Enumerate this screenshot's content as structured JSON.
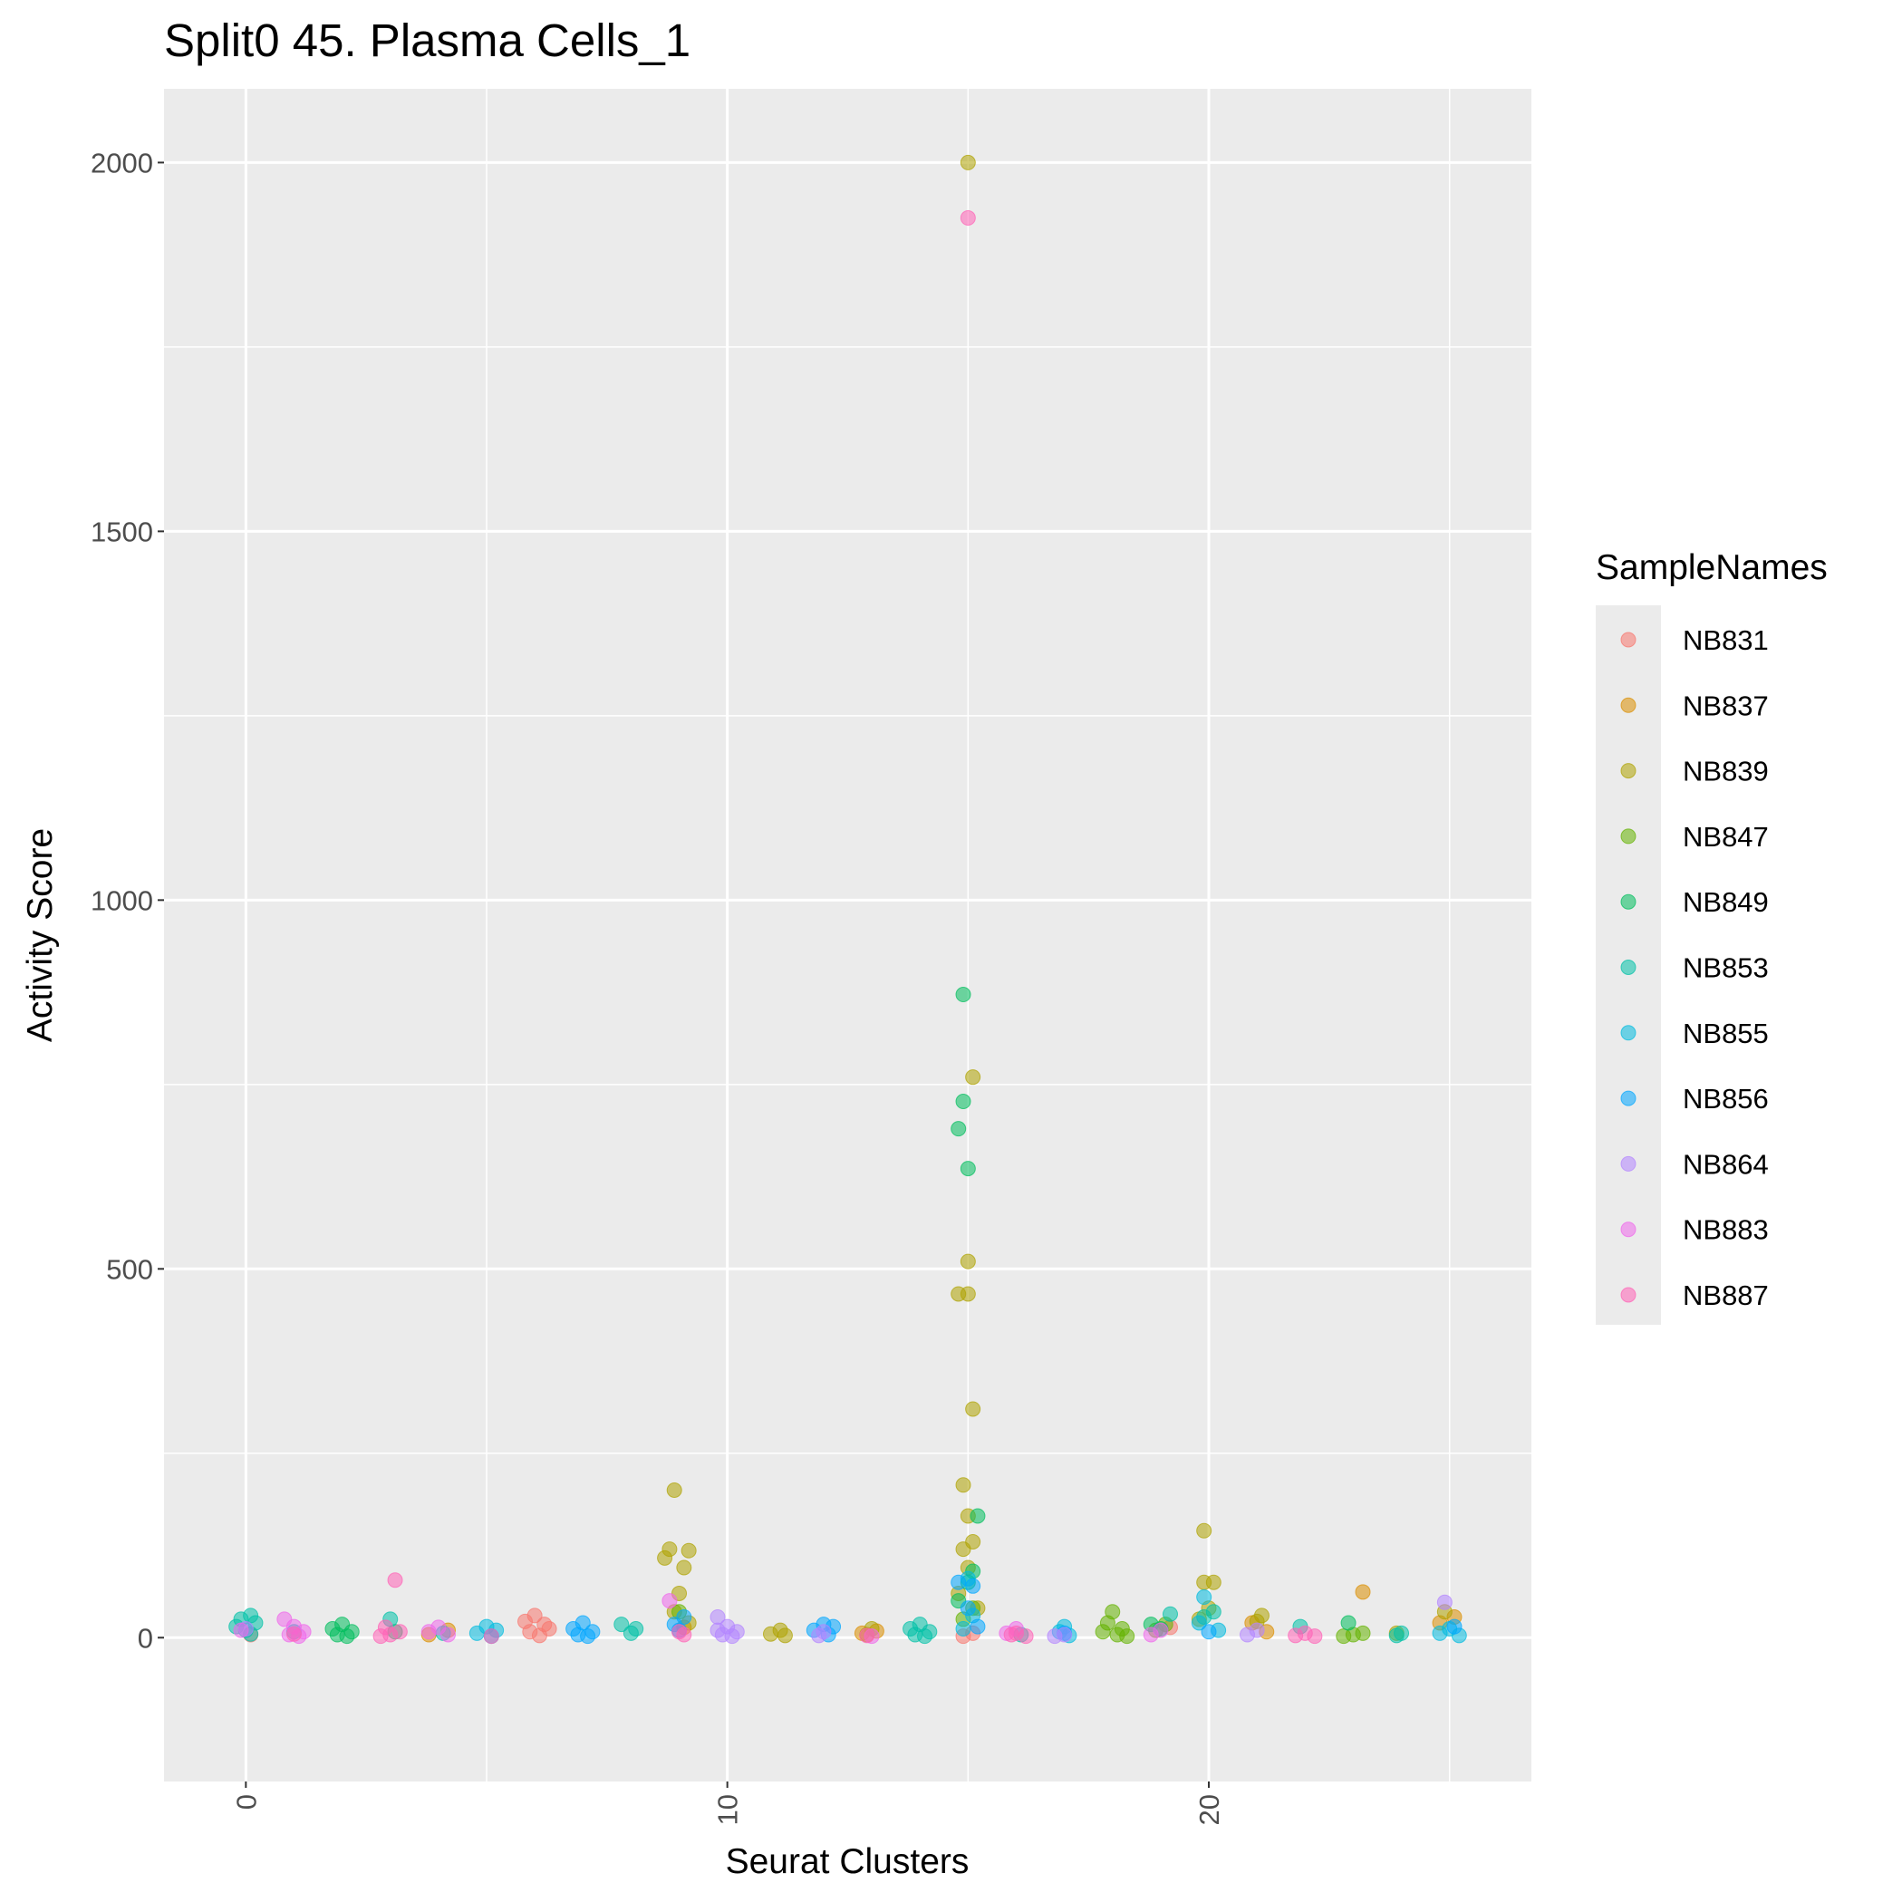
{
  "chart_data": {
    "type": "scatter",
    "title": "Split0 45. Plasma Cells_1",
    "xlabel": "Seurat Clusters",
    "ylabel": "Activity Score",
    "xlim": [
      -1.7,
      26.7
    ],
    "ylim": [
      -195,
      2100
    ],
    "x_ticks": [
      0,
      10,
      20
    ],
    "y_ticks": [
      0,
      500,
      1000,
      1500,
      2000
    ],
    "grid": true,
    "legend": {
      "title": "SampleNames",
      "position": "right"
    },
    "series": [
      {
        "name": "NB831",
        "color": "#F8766D",
        "points": [
          [
            6,
            30
          ],
          [
            6.2,
            18
          ],
          [
            5.9,
            8
          ],
          [
            6.1,
            3
          ],
          [
            6.3,
            12
          ],
          [
            5.8,
            22
          ],
          [
            15.1,
            6
          ],
          [
            19.2,
            14
          ],
          [
            0.1,
            4
          ],
          [
            14.9,
            2
          ]
        ]
      },
      {
        "name": "NB837",
        "color": "#DB8E00",
        "points": [
          [
            23.2,
            62
          ],
          [
            4.2,
            10
          ],
          [
            12.8,
            6
          ],
          [
            13.1,
            9
          ],
          [
            20.9,
            20
          ],
          [
            24.8,
            20
          ],
          [
            25.1,
            28
          ],
          [
            3.8,
            4
          ],
          [
            21.2,
            8
          ],
          [
            9.1,
            14
          ]
        ]
      },
      {
        "name": "NB839",
        "color": "#AEA200",
        "points": [
          [
            15.0,
            2000
          ],
          [
            15.1,
            760
          ],
          [
            15.0,
            510
          ],
          [
            14.8,
            466
          ],
          [
            15.0,
            466
          ],
          [
            15.1,
            310
          ],
          [
            14.9,
            207
          ],
          [
            15.0,
            165
          ],
          [
            15.1,
            130
          ],
          [
            14.9,
            120
          ],
          [
            15.0,
            95
          ],
          [
            14.8,
            60
          ],
          [
            15.2,
            40
          ],
          [
            8.9,
            200
          ],
          [
            8.8,
            120
          ],
          [
            9.2,
            118
          ],
          [
            8.7,
            108
          ],
          [
            9.1,
            95
          ],
          [
            9.0,
            60
          ],
          [
            8.9,
            35
          ],
          [
            9.2,
            20
          ],
          [
            19.9,
            145
          ],
          [
            19.9,
            75
          ],
          [
            20.1,
            75
          ],
          [
            20.0,
            40
          ],
          [
            19.8,
            25
          ],
          [
            21.1,
            30
          ],
          [
            21.0,
            22
          ],
          [
            24.9,
            35
          ],
          [
            11.1,
            10
          ],
          [
            10.9,
            5
          ],
          [
            11.2,
            3
          ],
          [
            13.0,
            12
          ],
          [
            12.9,
            4
          ],
          [
            23.9,
            6
          ]
        ]
      },
      {
        "name": "NB847",
        "color": "#64B200",
        "points": [
          [
            18.0,
            35
          ],
          [
            17.9,
            20
          ],
          [
            18.2,
            12
          ],
          [
            17.8,
            8
          ],
          [
            18.1,
            4
          ],
          [
            18.3,
            2
          ],
          [
            19.1,
            18
          ],
          [
            18.9,
            10
          ],
          [
            23.0,
            4
          ],
          [
            22.8,
            2
          ],
          [
            23.2,
            6
          ],
          [
            14.9,
            25
          ],
          [
            15.1,
            40
          ],
          [
            9.0,
            35
          ]
        ]
      },
      {
        "name": "NB849",
        "color": "#00BD5C",
        "points": [
          [
            14.9,
            872
          ],
          [
            14.9,
            727
          ],
          [
            14.8,
            690
          ],
          [
            15.0,
            636
          ],
          [
            15.2,
            165
          ],
          [
            15.1,
            90
          ],
          [
            15.0,
            75
          ],
          [
            14.8,
            50
          ],
          [
            2.0,
            18
          ],
          [
            1.8,
            12
          ],
          [
            2.2,
            8
          ],
          [
            1.9,
            4
          ],
          [
            2.1,
            2
          ],
          [
            18.8,
            18
          ],
          [
            19.0,
            12
          ],
          [
            22.9,
            20
          ],
          [
            3.1,
            8
          ]
        ]
      },
      {
        "name": "NB853",
        "color": "#00C1A7",
        "points": [
          [
            0.1,
            30
          ],
          [
            -0.1,
            25
          ],
          [
            0.2,
            20
          ],
          [
            -0.2,
            15
          ],
          [
            0.0,
            10
          ],
          [
            0.1,
            5
          ],
          [
            14.0,
            18
          ],
          [
            13.8,
            12
          ],
          [
            14.2,
            8
          ],
          [
            13.9,
            4
          ],
          [
            14.1,
            2
          ],
          [
            3.0,
            25
          ],
          [
            7.8,
            18
          ],
          [
            8.1,
            12
          ],
          [
            8.0,
            6
          ],
          [
            19.2,
            32
          ],
          [
            20.1,
            35
          ],
          [
            19.9,
            28
          ],
          [
            21.9,
            15
          ],
          [
            24.0,
            6
          ],
          [
            23.9,
            3
          ],
          [
            1.0,
            8
          ],
          [
            4.1,
            6
          ],
          [
            16.1,
            4
          ]
        ]
      },
      {
        "name": "NB855",
        "color": "#00BADE",
        "points": [
          [
            19.9,
            55
          ],
          [
            19.8,
            20
          ],
          [
            20.2,
            10
          ],
          [
            5.0,
            15
          ],
          [
            5.2,
            10
          ],
          [
            4.8,
            6
          ],
          [
            5.1,
            2
          ],
          [
            15.0,
            80
          ],
          [
            15.1,
            30
          ],
          [
            14.9,
            12
          ],
          [
            17.0,
            15
          ],
          [
            16.9,
            8
          ],
          [
            17.1,
            3
          ],
          [
            25.0,
            12
          ],
          [
            24.8,
            6
          ],
          [
            25.2,
            3
          ]
        ]
      },
      {
        "name": "NB856",
        "color": "#00A6FF",
        "points": [
          [
            7.0,
            20
          ],
          [
            6.8,
            12
          ],
          [
            7.2,
            8
          ],
          [
            6.9,
            4
          ],
          [
            7.1,
            2
          ],
          [
            12.0,
            18
          ],
          [
            12.2,
            15
          ],
          [
            11.8,
            10
          ],
          [
            12.1,
            4
          ],
          [
            9.1,
            28
          ],
          [
            8.9,
            18
          ],
          [
            9.0,
            10
          ],
          [
            14.8,
            75
          ],
          [
            15.1,
            70
          ],
          [
            15.0,
            40
          ],
          [
            15.2,
            15
          ],
          [
            17.0,
            6
          ],
          [
            20.0,
            8
          ],
          [
            25.1,
            15
          ]
        ]
      },
      {
        "name": "NB864",
        "color": "#B385FF",
        "points": [
          [
            10.0,
            15
          ],
          [
            9.8,
            10
          ],
          [
            10.2,
            8
          ],
          [
            9.9,
            4
          ],
          [
            10.1,
            2
          ],
          [
            9.8,
            28
          ],
          [
            17.0,
            4
          ],
          [
            16.8,
            2
          ],
          [
            24.9,
            48
          ],
          [
            12.0,
            8
          ],
          [
            11.9,
            3
          ],
          [
            21.0,
            10
          ],
          [
            20.8,
            4
          ],
          [
            0.0,
            12
          ]
        ]
      },
      {
        "name": "NB883",
        "color": "#EF67EB",
        "points": [
          [
            0.8,
            25
          ],
          [
            1.0,
            15
          ],
          [
            1.2,
            8
          ],
          [
            0.9,
            4
          ],
          [
            1.1,
            2
          ],
          [
            4.0,
            14
          ],
          [
            3.8,
            8
          ],
          [
            4.2,
            4
          ],
          [
            19.0,
            10
          ],
          [
            18.8,
            4
          ],
          [
            8.8,
            50
          ],
          [
            16.0,
            12
          ],
          [
            15.8,
            6
          ],
          [
            -0.1,
            10
          ],
          [
            13.0,
            2
          ]
        ]
      },
      {
        "name": "NB887",
        "color": "#FF63B6",
        "points": [
          [
            15.0,
            1925
          ],
          [
            3.1,
            78
          ],
          [
            2.9,
            14
          ],
          [
            3.2,
            8
          ],
          [
            3.0,
            4
          ],
          [
            2.8,
            2
          ],
          [
            9.0,
            8
          ],
          [
            9.1,
            4
          ],
          [
            16.0,
            6
          ],
          [
            16.2,
            2
          ],
          [
            15.9,
            4
          ],
          [
            22.0,
            6
          ],
          [
            21.8,
            3
          ],
          [
            22.2,
            2
          ],
          [
            12.9,
            3
          ],
          [
            5.1,
            2
          ],
          [
            1.0,
            5
          ]
        ]
      }
    ]
  }
}
